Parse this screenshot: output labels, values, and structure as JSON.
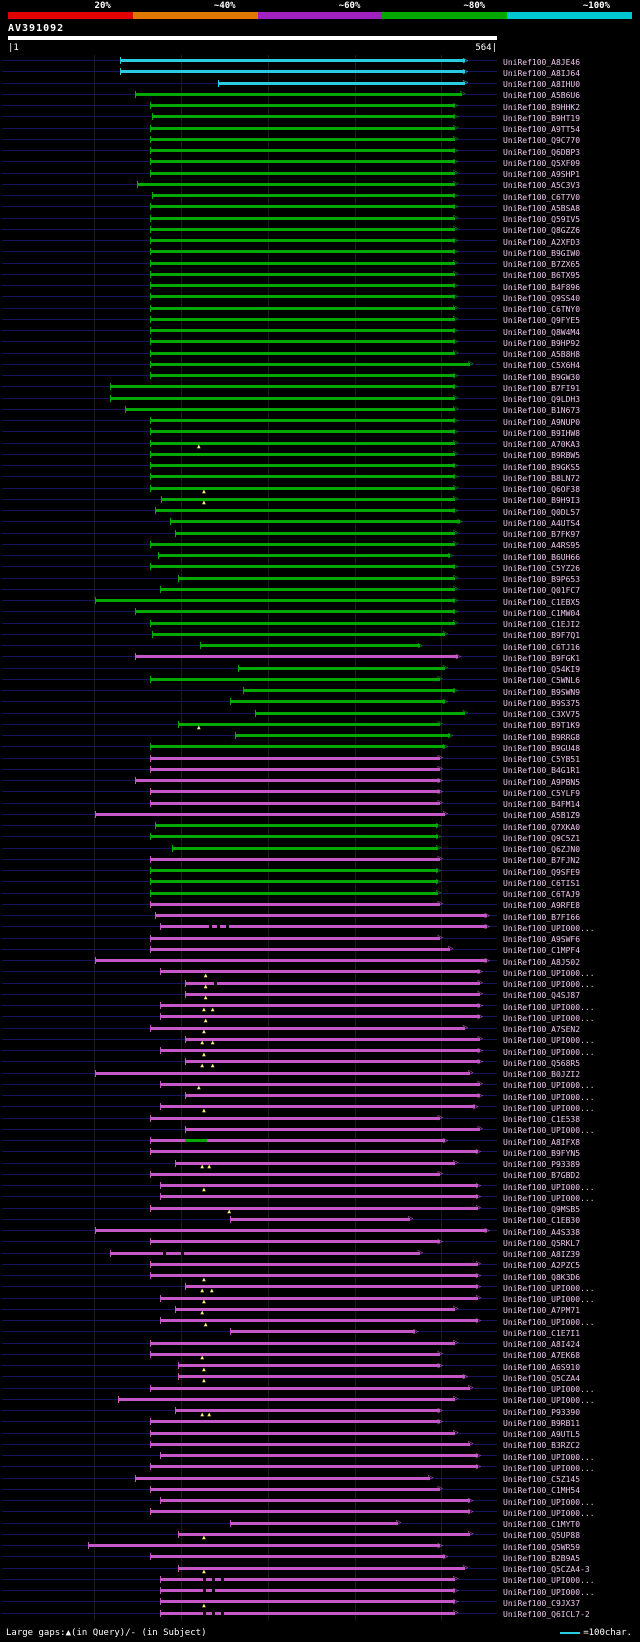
{
  "scale": {
    "labels": [
      "20%",
      "~40%",
      "~60%",
      "~80%",
      "~100%"
    ],
    "colors": [
      "#e00000",
      "#e07800",
      "#a020c0",
      "#00a800",
      "#00c8d0"
    ]
  },
  "query": {
    "name": "AV391092",
    "ruler_left": "|1",
    "ruler_right": "564|"
  },
  "footer": {
    "gaps_legend": "Large gaps:▲(in Query)/- (in Subject)",
    "unit_legend": "=100char."
  },
  "colors": {
    "g": "#00a800",
    "m": "#c657c6",
    "c": "#29cce0"
  },
  "chart_data": {
    "type": "bar",
    "title": "AV391092",
    "xlabel": "query position",
    "xlim": [
      1,
      564
    ],
    "legend": {
      "identity_scale": [
        "20%",
        "~40%",
        "~60%",
        "~80%",
        "~100%"
      ],
      "unit": "=100char."
    },
    "rows": [
      {
        "l": "UniRef100_A8JE46",
        "c": "c",
        "s": 130,
        "e": 527
      },
      {
        "l": "UniRef100_A8IJ64",
        "c": "c",
        "s": 130,
        "e": 527
      },
      {
        "l": "UniRef100_A8IHU0",
        "c": "c",
        "s": 243,
        "e": 527
      },
      {
        "l": "UniRef100_A5B6U6",
        "c": "g",
        "s": 147,
        "e": 524
      },
      {
        "l": "UniRef100_B9HHK2",
        "c": "g",
        "s": 164,
        "e": 516
      },
      {
        "l": "UniRef100_B9HT19",
        "c": "g",
        "s": 167,
        "e": 516
      },
      {
        "l": "UniRef100_A9TT54",
        "c": "g",
        "s": 164,
        "e": 516
      },
      {
        "l": "UniRef100_Q9C770",
        "c": "g",
        "s": 164,
        "e": 516
      },
      {
        "l": "UniRef100_Q6DBP3",
        "c": "g",
        "s": 164,
        "e": 516
      },
      {
        "l": "UniRef100_Q5XF09",
        "c": "g",
        "s": 164,
        "e": 516
      },
      {
        "l": "UniRef100_A9SHP1",
        "c": "g",
        "s": 164,
        "e": 516
      },
      {
        "l": "UniRef100_A5C3V3",
        "c": "g",
        "s": 150,
        "e": 516
      },
      {
        "l": "UniRef100_C6T7V0",
        "c": "g",
        "s": 167,
        "e": 516
      },
      {
        "l": "UniRef100_A5BSA8",
        "c": "g",
        "s": 164,
        "e": 516
      },
      {
        "l": "UniRef100_Q59IV5",
        "c": "g",
        "s": 164,
        "e": 516
      },
      {
        "l": "UniRef100_Q8GZZ6",
        "c": "g",
        "s": 164,
        "e": 516
      },
      {
        "l": "UniRef100_A2XFD3",
        "c": "g",
        "s": 164,
        "e": 516
      },
      {
        "l": "UniRef100_B9GIW0",
        "c": "g",
        "s": 164,
        "e": 516
      },
      {
        "l": "UniRef100_B7ZX65",
        "c": "g",
        "s": 164,
        "e": 516
      },
      {
        "l": "UniRef100_B6TX95",
        "c": "g",
        "s": 164,
        "e": 516
      },
      {
        "l": "UniRef100_B4F896",
        "c": "g",
        "s": 164,
        "e": 516
      },
      {
        "l": "UniRef100_Q9SS40",
        "c": "g",
        "s": 164,
        "e": 516
      },
      {
        "l": "UniRef100_C6TNY0",
        "c": "g",
        "s": 164,
        "e": 516
      },
      {
        "l": "UniRef100_Q9FYE5",
        "c": "g",
        "s": 164,
        "e": 516
      },
      {
        "l": "UniRef100_Q8W4M4",
        "c": "g",
        "s": 164,
        "e": 516
      },
      {
        "l": "UniRef100_B9HP92",
        "c": "g",
        "s": 164,
        "e": 516
      },
      {
        "l": "UniRef100_A5B8H8",
        "c": "g",
        "s": 164,
        "e": 516
      },
      {
        "l": "UniRef100_C5X6H4",
        "c": "g",
        "s": 164,
        "e": 533
      },
      {
        "l": "UniRef100_B9GW30",
        "c": "g",
        "s": 164,
        "e": 516
      },
      {
        "l": "UniRef100_B7FI91",
        "c": "g",
        "s": 118,
        "e": 516
      },
      {
        "l": "UniRef100_Q9LDH3",
        "c": "g",
        "s": 118,
        "e": 516
      },
      {
        "l": "UniRef100_B1N673",
        "c": "g",
        "s": 136,
        "e": 516
      },
      {
        "l": "UniRef100_A9NUP0",
        "c": "g",
        "s": 164,
        "e": 516
      },
      {
        "l": "UniRef100_B9IHW8",
        "c": "g",
        "s": 164,
        "e": 516
      },
      {
        "l": "UniRef100_A70KA3",
        "c": "g",
        "s": 164,
        "e": 516,
        "t": [
          222
        ]
      },
      {
        "l": "UniRef100_B9RBW5",
        "c": "g",
        "s": 164,
        "e": 516
      },
      {
        "l": "UniRef100_B9GKS5",
        "c": "g",
        "s": 164,
        "e": 516
      },
      {
        "l": "UniRef100_B8LN72",
        "c": "g",
        "s": 164,
        "e": 516
      },
      {
        "l": "UniRef100_Q6OF38",
        "c": "g",
        "s": 164,
        "e": 516,
        "t": [
          228
        ]
      },
      {
        "l": "UniRef100_B9H9I3",
        "c": "g",
        "s": 177,
        "e": 516,
        "t": [
          228
        ]
      },
      {
        "l": "UniRef100_Q0DL57",
        "c": "g",
        "s": 170,
        "e": 516
      },
      {
        "l": "UniRef100_A4UTS4",
        "c": "g",
        "s": 188,
        "e": 521
      },
      {
        "l": "UniRef100_B7FK97",
        "c": "g",
        "s": 193,
        "e": 516
      },
      {
        "l": "UniRef100_A4RS95",
        "c": "g",
        "s": 164,
        "e": 516
      },
      {
        "l": "UniRef100_B6UH66",
        "c": "g",
        "s": 174,
        "e": 510
      },
      {
        "l": "UniRef100_C5YZ26",
        "c": "g",
        "s": 164,
        "e": 516
      },
      {
        "l": "UniRef100_B9P653",
        "c": "g",
        "s": 197,
        "e": 516
      },
      {
        "l": "UniRef100_Q01FC7",
        "c": "g",
        "s": 176,
        "e": 516
      },
      {
        "l": "UniRef100_C1EBX5",
        "c": "g",
        "s": 101,
        "e": 516
      },
      {
        "l": "UniRef100_C1MW04",
        "c": "g",
        "s": 147,
        "e": 516
      },
      {
        "l": "UniRef100_C1EJI2",
        "c": "g",
        "s": 164,
        "e": 516
      },
      {
        "l": "UniRef100_B9F7Q1",
        "c": "g",
        "s": 167,
        "e": 504
      },
      {
        "l": "UniRef100_C6TJ16",
        "c": "g",
        "s": 222,
        "e": 475
      },
      {
        "l": "UniRef100_B9FGK1",
        "c": "m",
        "s": 147,
        "e": 519
      },
      {
        "l": "UniRef100_Q54KI9",
        "c": "g",
        "s": 266,
        "e": 504
      },
      {
        "l": "UniRef100_C5WNL6",
        "c": "g",
        "s": 164,
        "e": 498
      },
      {
        "l": "UniRef100_B9SWN9",
        "c": "g",
        "s": 272,
        "e": 516
      },
      {
        "l": "UniRef100_B9S375",
        "c": "g",
        "s": 257,
        "e": 504
      },
      {
        "l": "UniRef100_C3XV75",
        "c": "g",
        "s": 285,
        "e": 527
      },
      {
        "l": "UniRef100_B9T1K9",
        "c": "g",
        "s": 197,
        "e": 498,
        "t": [
          222
        ]
      },
      {
        "l": "UniRef100_B9RRG8",
        "c": "g",
        "s": 262,
        "e": 510
      },
      {
        "l": "UniRef100_B9GU48",
        "c": "g",
        "s": 164,
        "e": 504
      },
      {
        "l": "UniRef100_C5YB51",
        "c": "m",
        "s": 164,
        "e": 498
      },
      {
        "l": "UniRef100_B4G1R1",
        "c": "m",
        "s": 164,
        "e": 498
      },
      {
        "l": "UniRef100_A9PBN5",
        "c": "m",
        "s": 147,
        "e": 498
      },
      {
        "l": "UniRef100_C5YLF9",
        "c": "m",
        "s": 164,
        "e": 498
      },
      {
        "l": "UniRef100_B4FM14",
        "c": "m",
        "s": 164,
        "e": 498
      },
      {
        "l": "UniRef100_A5B1Z9",
        "c": "m",
        "s": 101,
        "e": 504
      },
      {
        "l": "UniRef100_Q7XKA0",
        "c": "g",
        "s": 170,
        "e": 496
      },
      {
        "l": "UniRef100_Q9C5Z1",
        "c": "g",
        "s": 164,
        "e": 496
      },
      {
        "l": "UniRef100_Q6ZJN0",
        "c": "g",
        "s": 190,
        "e": 496
      },
      {
        "l": "UniRef100_B7FJN2",
        "c": "m",
        "s": 164,
        "e": 498
      },
      {
        "l": "UniRef100_Q9SFE9",
        "c": "g",
        "s": 164,
        "e": 496
      },
      {
        "l": "UniRef100_C6TIS1",
        "c": "g",
        "s": 164,
        "e": 496
      },
      {
        "l": "UniRef100_C6TAJ9",
        "c": "g",
        "s": 164,
        "e": 496
      },
      {
        "l": "UniRef100_A9RFE8",
        "c": "m",
        "s": 164,
        "e": 498
      },
      {
        "l": "UniRef100_B7FI66",
        "c": "m",
        "s": 170,
        "e": 552
      },
      {
        "l": "UniRef100_UPI000...",
        "c": "m",
        "s": 176,
        "e": 552,
        "g": [
          232,
          242,
          252
        ]
      },
      {
        "l": "UniRef100_A9SWF6",
        "c": "m",
        "s": 164,
        "e": 498
      },
      {
        "l": "UniRef100_C1MPF4",
        "c": "m",
        "s": 164,
        "e": 510
      },
      {
        "l": "UniRef100_A8J502",
        "c": "m",
        "s": 101,
        "e": 552
      },
      {
        "l": "UniRef100_UPI000...",
        "c": "m",
        "s": 176,
        "e": 544,
        "t": [
          230
        ]
      },
      {
        "l": "UniRef100_UPI000...",
        "c": "m",
        "s": 205,
        "e": 544,
        "t": [
          230
        ],
        "g": [
          238
        ]
      },
      {
        "l": "UniRef100_Q4SJ87",
        "c": "m",
        "s": 205,
        "e": 544,
        "t": [
          230
        ]
      },
      {
        "l": "UniRef100_UPI000...",
        "c": "m",
        "s": 176,
        "e": 544,
        "t": [
          228,
          238
        ]
      },
      {
        "l": "UniRef100_UPI000...",
        "c": "m",
        "s": 176,
        "e": 544,
        "t": [
          230
        ]
      },
      {
        "l": "UniRef100_A7SEN2",
        "c": "m",
        "s": 164,
        "e": 527,
        "t": [
          228
        ]
      },
      {
        "l": "UniRef100_UPI000...",
        "c": "m",
        "s": 205,
        "e": 544,
        "t": [
          226,
          238
        ]
      },
      {
        "l": "UniRef100_UPI000...",
        "c": "m",
        "s": 176,
        "e": 544,
        "t": [
          228
        ]
      },
      {
        "l": "UniRef100_Q568R5",
        "c": "m",
        "s": 205,
        "e": 544,
        "t": [
          226,
          238
        ]
      },
      {
        "l": "UniRef100_B0JZI2",
        "c": "m",
        "s": 101,
        "e": 533
      },
      {
        "l": "UniRef100_UPI000...",
        "c": "m",
        "s": 176,
        "e": 544,
        "t": [
          222
        ]
      },
      {
        "l": "UniRef100_UPI000...",
        "c": "m",
        "s": 205,
        "e": 544
      },
      {
        "l": "UniRef100_UPI000...",
        "c": "m",
        "s": 176,
        "e": 539,
        "t": [
          228
        ]
      },
      {
        "l": "UniRef100_C1E538",
        "c": "m",
        "s": 164,
        "e": 498
      },
      {
        "l": "UniRef100_UPI000...",
        "c": "m",
        "s": 205,
        "e": 544
      },
      {
        "l": "UniRef100_A8IFX8",
        "c": "m",
        "s": 164,
        "e": 504,
        "x": [
          {
            "c": "g",
            "s": 205,
            "e": 230
          }
        ]
      },
      {
        "l": "UniRef100_B9FYN5",
        "c": "m",
        "s": 164,
        "e": 542
      },
      {
        "l": "UniRef100_P93389",
        "c": "m",
        "s": 193,
        "e": 516,
        "t": [
          226,
          234
        ]
      },
      {
        "l": "UniRef100_B7GBD2",
        "c": "m",
        "s": 164,
        "e": 498
      },
      {
        "l": "UniRef100_UPI000...",
        "c": "m",
        "s": 176,
        "e": 542,
        "t": [
          228
        ]
      },
      {
        "l": "UniRef100_UPI000...",
        "c": "m",
        "s": 176,
        "e": 542
      },
      {
        "l": "UniRef100_Q9MSB5",
        "c": "m",
        "s": 164,
        "e": 542,
        "t": [
          257
        ]
      },
      {
        "l": "UniRef100_C1EB30",
        "c": "m",
        "s": 257,
        "e": 464
      },
      {
        "l": "UniRef100_A4S338",
        "c": "m",
        "s": 101,
        "e": 552
      },
      {
        "l": "UniRef100_Q5RKL7",
        "c": "m",
        "s": 164,
        "e": 498
      },
      {
        "l": "UniRef100_A8IZ39",
        "c": "m",
        "s": 118,
        "e": 475,
        "g": [
          180,
          200
        ]
      },
      {
        "l": "UniRef100_A2PZC5",
        "c": "m",
        "s": 164,
        "e": 542
      },
      {
        "l": "UniRef100_Q8K3D6",
        "c": "m",
        "s": 164,
        "e": 542,
        "t": [
          228
        ]
      },
      {
        "l": "UniRef100_UPI000...",
        "c": "m",
        "s": 205,
        "e": 542,
        "t": [
          226,
          237
        ]
      },
      {
        "l": "UniRef100_UPI000...",
        "c": "m",
        "s": 176,
        "e": 542,
        "t": [
          228
        ]
      },
      {
        "l": "UniRef100_A7PM71",
        "c": "m",
        "s": 193,
        "e": 516,
        "t": [
          226
        ]
      },
      {
        "l": "UniRef100_UPI000...",
        "c": "m",
        "s": 176,
        "e": 542,
        "t": [
          230
        ]
      },
      {
        "l": "UniRef100_C1E7I1",
        "c": "m",
        "s": 257,
        "e": 470
      },
      {
        "l": "UniRef100_A8I424",
        "c": "m",
        "s": 164,
        "e": 516
      },
      {
        "l": "UniRef100_A7EK68",
        "c": "m",
        "s": 164,
        "e": 498,
        "t": [
          226
        ]
      },
      {
        "l": "UniRef100_A6S910",
        "c": "m",
        "s": 197,
        "e": 498,
        "t": [
          228
        ]
      },
      {
        "l": "UniRef100_Q5CZA4",
        "c": "m",
        "s": 197,
        "e": 527,
        "t": [
          228
        ]
      },
      {
        "l": "UniRef100_UPI000...",
        "c": "m",
        "s": 164,
        "e": 533
      },
      {
        "l": "UniRef100_UPI000...",
        "c": "m",
        "s": 128,
        "e": 516
      },
      {
        "l": "UniRef100_P93390",
        "c": "m",
        "s": 193,
        "e": 498,
        "t": [
          226,
          234
        ]
      },
      {
        "l": "UniRef100_B9RB11",
        "c": "m",
        "s": 164,
        "e": 498
      },
      {
        "l": "UniRef100_A9UTL5",
        "c": "m",
        "s": 164,
        "e": 516
      },
      {
        "l": "UniRef100_B3RZC2",
        "c": "m",
        "s": 164,
        "e": 533
      },
      {
        "l": "UniRef100_UPI000...",
        "c": "m",
        "s": 176,
        "e": 542
      },
      {
        "l": "UniRef100_UPI000...",
        "c": "m",
        "s": 164,
        "e": 542
      },
      {
        "l": "UniRef100_C5Z145",
        "c": "m",
        "s": 147,
        "e": 487
      },
      {
        "l": "UniRef100_C1MH54",
        "c": "m",
        "s": 164,
        "e": 498
      },
      {
        "l": "UniRef100_UPI000...",
        "c": "m",
        "s": 176,
        "e": 533
      },
      {
        "l": "UniRef100_UPI000...",
        "c": "m",
        "s": 164,
        "e": 533
      },
      {
        "l": "UniRef100_C1MYT0",
        "c": "m",
        "s": 257,
        "e": 450
      },
      {
        "l": "UniRef100_Q5UP88",
        "c": "m",
        "s": 197,
        "e": 533,
        "t": [
          228
        ]
      },
      {
        "l": "UniRef100_Q5WR59",
        "c": "m",
        "s": 93,
        "e": 498
      },
      {
        "l": "UniRef100_B2B9A5",
        "c": "m",
        "s": 164,
        "e": 504
      },
      {
        "l": "UniRef100_Q5CZA4-3",
        "c": "m",
        "s": 197,
        "e": 527,
        "t": [
          228
        ]
      },
      {
        "l": "UniRef100_UPI000...",
        "c": "m",
        "s": 176,
        "e": 516,
        "g": [
          226,
          236,
          246
        ]
      },
      {
        "l": "UniRef100_UPI000...",
        "c": "m",
        "s": 176,
        "e": 516,
        "g": [
          226,
          236
        ]
      },
      {
        "l": "UniRef100_C9JX37",
        "c": "m",
        "s": 176,
        "e": 516,
        "t": [
          228
        ]
      },
      {
        "l": "UniRef100_Q6ICL7-2",
        "c": "m",
        "s": 176,
        "e": 516,
        "g": [
          226,
          236,
          246
        ]
      }
    ]
  }
}
